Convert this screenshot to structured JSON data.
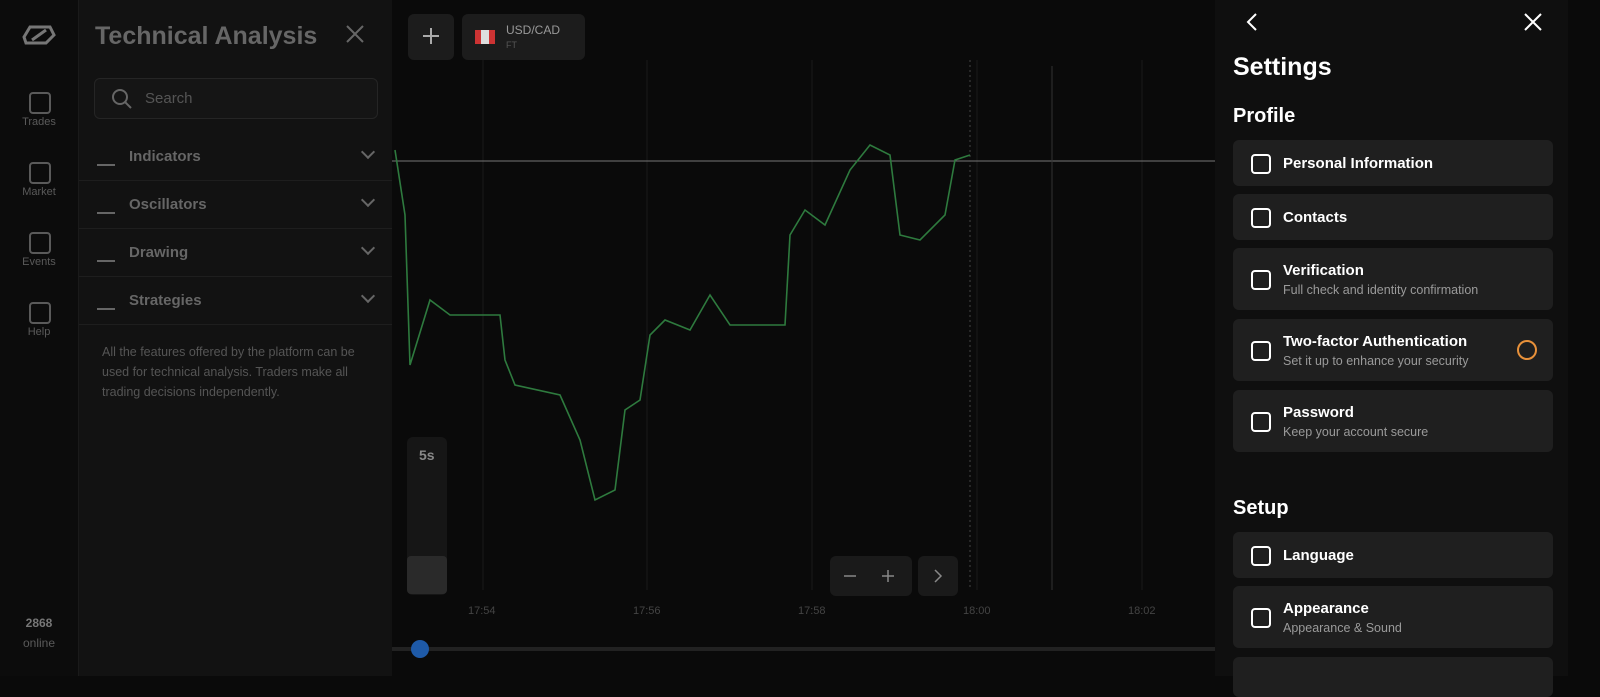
{
  "sidebar": {
    "nav": [
      "Trades",
      "Market",
      "Events",
      "Help"
    ],
    "online_count": 2868,
    "online_label": "online"
  },
  "analysis_panel": {
    "title": "Technical Analysis",
    "search_placeholder": "Search",
    "sections": [
      "Indicators",
      "Oscillators",
      "Drawing",
      "Strategies"
    ],
    "disclaimer": "All the features offered by the platform can be used for technical analysis. Traders make all trading decisions independently."
  },
  "chart": {
    "asset": "USD/CAD",
    "asset_type": "FT",
    "timeframe": "5s",
    "time_labels": [
      "17:54",
      "17:56",
      "17:58",
      "18:00",
      "18:02"
    ]
  },
  "settings": {
    "title": "Settings",
    "groups": [
      {
        "title": "Profile",
        "items": [
          {
            "title": "Personal Information"
          },
          {
            "title": "Contacts"
          },
          {
            "title": "Verification",
            "subtitle": "Full check and identity confirmation"
          },
          {
            "title": "Two-factor Authentication",
            "subtitle": "Set it up to enhance your security"
          },
          {
            "title": "Password",
            "subtitle": "Keep your account secure"
          }
        ]
      },
      {
        "title": "Setup",
        "items": [
          {
            "title": "Language"
          },
          {
            "title": "Appearance",
            "subtitle": "Appearance & Sound"
          }
        ]
      }
    ]
  }
}
